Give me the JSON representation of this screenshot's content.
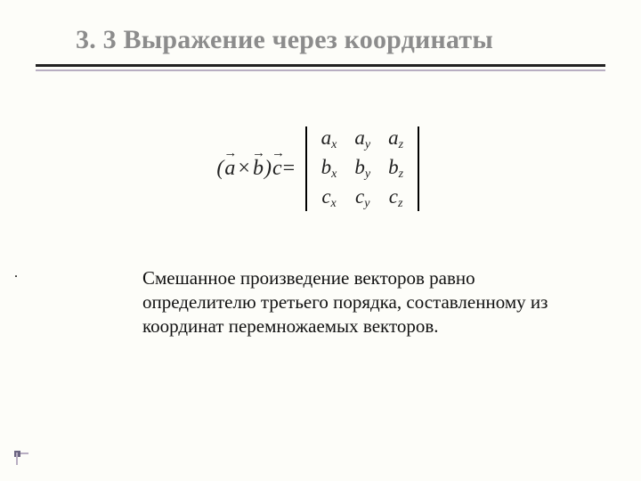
{
  "title": "3. 3 Выражение через координаты",
  "colors": {
    "background": "#fdfdf9",
    "title_color": "#8c8c8c",
    "rule_thick": "#222222",
    "rule_thin": "#b8aec2",
    "text_color": "#111111",
    "corner_accent": "#6a6480"
  },
  "typography": {
    "title_fontsize_pt": 22,
    "body_fontsize_pt": 16,
    "math_fontsize_pt": 18,
    "font_family": "Times New Roman"
  },
  "formula": {
    "lhs_open": "(",
    "vec_a": "a",
    "cross": "×",
    "vec_b": "b",
    "lhs_close": ")",
    "vec_c": "c",
    "equals": " = ",
    "matrix": {
      "rows": [
        [
          "a",
          "a",
          "a"
        ],
        [
          "b",
          "b",
          "b"
        ],
        [
          "c",
          "c",
          "c"
        ]
      ],
      "subs": [
        [
          "x",
          "y",
          "z"
        ],
        [
          "x",
          "y",
          "z"
        ],
        [
          "x",
          "y",
          "z"
        ]
      ]
    }
  },
  "dot": ".",
  "body": "Смешанное произведение векторов равно определителю третьего порядка, составленному из координат перемножаемых векторов."
}
